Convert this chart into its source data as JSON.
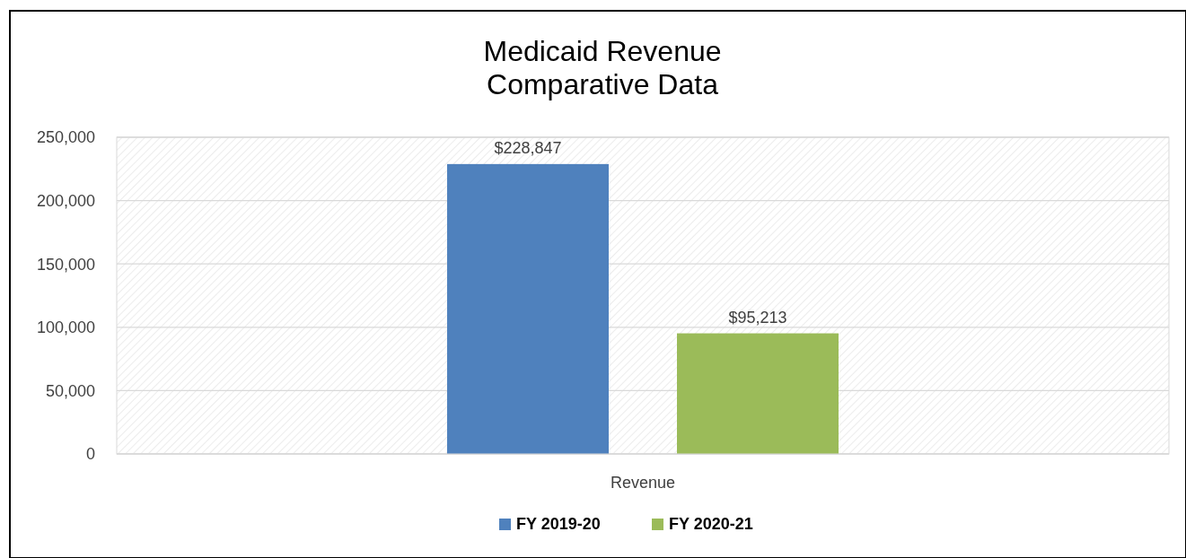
{
  "chart_data": {
    "type": "bar",
    "title": "Medicaid Revenue\nComparative Data",
    "categories": [
      "Revenue"
    ],
    "series": [
      {
        "name": "FY 2019-20",
        "color": "#4f81bd",
        "values": [
          228847
        ],
        "value_labels": [
          "$228,847"
        ]
      },
      {
        "name": "FY 2020-21",
        "color": "#9bbb59",
        "values": [
          95213
        ],
        "value_labels": [
          "$95,213"
        ]
      }
    ],
    "ylim": [
      0,
      250000
    ],
    "yticks": [
      {
        "value": 0,
        "label": "0"
      },
      {
        "value": 50000,
        "label": "50,000"
      },
      {
        "value": 100000,
        "label": "100,000"
      },
      {
        "value": 150000,
        "label": "150,000"
      },
      {
        "value": 200000,
        "label": "200,000"
      },
      {
        "value": 250000,
        "label": "250,000"
      }
    ],
    "grid": "y",
    "legend": "bottom"
  }
}
